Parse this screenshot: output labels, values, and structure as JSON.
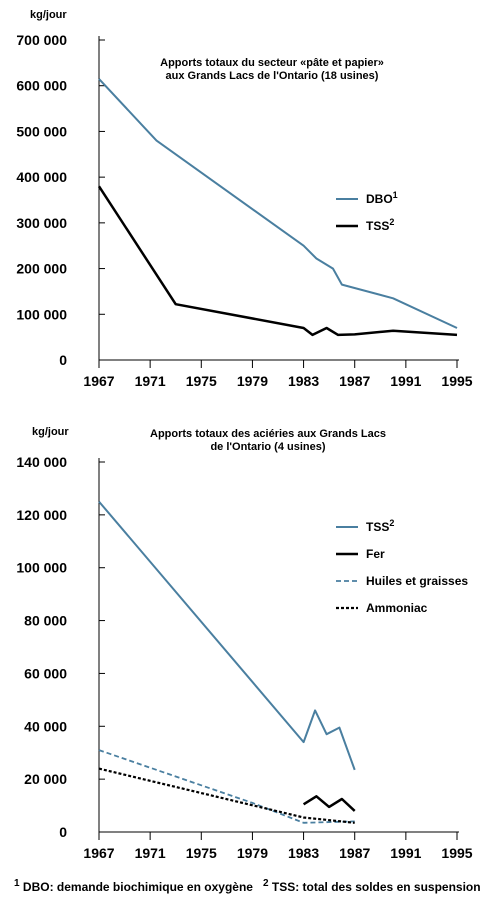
{
  "chart_data": [
    {
      "type": "line",
      "title_lines": [
        "Apports totaux du secteur «pâte et papier»",
        "aux Grands Lacs de l'Ontario (18 usines)"
      ],
      "ylabel": "kg/jour",
      "xlabel": "",
      "xlim": [
        1967,
        1995
      ],
      "ylim": [
        0,
        700000
      ],
      "x_ticks": [
        1967,
        1971,
        1975,
        1979,
        1983,
        1987,
        1991,
        1995
      ],
      "x_tick_labels": [
        "1967",
        "1971",
        "1975",
        "1979",
        "1983",
        "1987",
        "1991",
        "1995"
      ],
      "y_ticks": [
        0,
        100000,
        200000,
        300000,
        400000,
        500000,
        600000,
        700000
      ],
      "y_tick_labels": [
        "0",
        "100 000",
        "200 000",
        "300 000",
        "400 000",
        "500 000",
        "600 000",
        "700 000"
      ],
      "legend_position": "right",
      "series": [
        {
          "name": "DBO",
          "sup": "1",
          "color": "#4a7fa0",
          "dash": "solid",
          "width": 2,
          "points": [
            [
              1967,
              615000
            ],
            [
              1971.5,
              480000
            ],
            [
              1983,
              250000
            ],
            [
              1984,
              222000
            ],
            [
              1985.3,
              200000
            ],
            [
              1986,
              165000
            ],
            [
              1990,
              135000
            ],
            [
              1995,
              70000
            ]
          ]
        },
        {
          "name": "TSS",
          "sup": "2",
          "color": "#000000",
          "dash": "solid",
          "width": 2.5,
          "points": [
            [
              1967,
              380000
            ],
            [
              1973,
              122000
            ],
            [
              1983,
              70000
            ],
            [
              1983.7,
              55000
            ],
            [
              1984.8,
              70000
            ],
            [
              1985.7,
              55000
            ],
            [
              1987,
              56000
            ],
            [
              1990,
              64000
            ],
            [
              1995,
              55000
            ]
          ]
        }
      ]
    },
    {
      "type": "line",
      "title_lines": [
        "Apports totaux des aciéries aux Grands Lacs",
        "de l'Ontario (4 usines)"
      ],
      "ylabel": "kg/jour",
      "xlabel": "",
      "xlim": [
        1967,
        1995
      ],
      "ylim": [
        0,
        140000
      ],
      "x_ticks": [
        1967,
        1971,
        1975,
        1979,
        1983,
        1987,
        1991,
        1995
      ],
      "x_tick_labels": [
        "1967",
        "1971",
        "1975",
        "1979",
        "1983",
        "1987",
        "1991",
        "1995"
      ],
      "y_ticks": [
        0,
        20000,
        40000,
        60000,
        80000,
        100000,
        120000,
        140000
      ],
      "y_tick_labels": [
        "0",
        "20 000",
        "40 000",
        "60 000",
        "80 000",
        "100 000",
        "120 000",
        "140 000"
      ],
      "legend_position": "right",
      "series": [
        {
          "name": "TSS",
          "sup": "2",
          "color": "#4a7fa0",
          "dash": "solid",
          "width": 2,
          "points": [
            [
              1967,
              125000
            ],
            [
              1983,
              34000
            ],
            [
              1983.9,
              46000
            ],
            [
              1984.8,
              37000
            ],
            [
              1985.8,
              39500
            ],
            [
              1987,
              23500
            ]
          ]
        },
        {
          "name": "Fer",
          "sup": "",
          "color": "#000000",
          "dash": "solid",
          "width": 2.5,
          "points": [
            [
              1983,
              10500
            ],
            [
              1984,
              13500
            ],
            [
              1985,
              9500
            ],
            [
              1986,
              12500
            ],
            [
              1987,
              8000
            ]
          ]
        },
        {
          "name": "Huiles et graisses",
          "sup": "",
          "color": "#4a7fa0",
          "dash": "5,3",
          "width": 1.8,
          "points": [
            [
              1967,
              31000
            ],
            [
              1979,
              11000
            ],
            [
              1983,
              3500
            ],
            [
              1987,
              4000
            ]
          ]
        },
        {
          "name": "Ammoniac",
          "sup": "",
          "color": "#000000",
          "dash": "3,2",
          "width": 2.2,
          "points": [
            [
              1967,
              24000
            ],
            [
              1983,
              5500
            ],
            [
              1987,
              3500
            ]
          ]
        }
      ]
    }
  ],
  "footnotes": {
    "n1": "1",
    "t1": "DBO: demande biochimique en oxygène",
    "n2": "2",
    "t2": "TSS: total des soldes en suspension"
  }
}
